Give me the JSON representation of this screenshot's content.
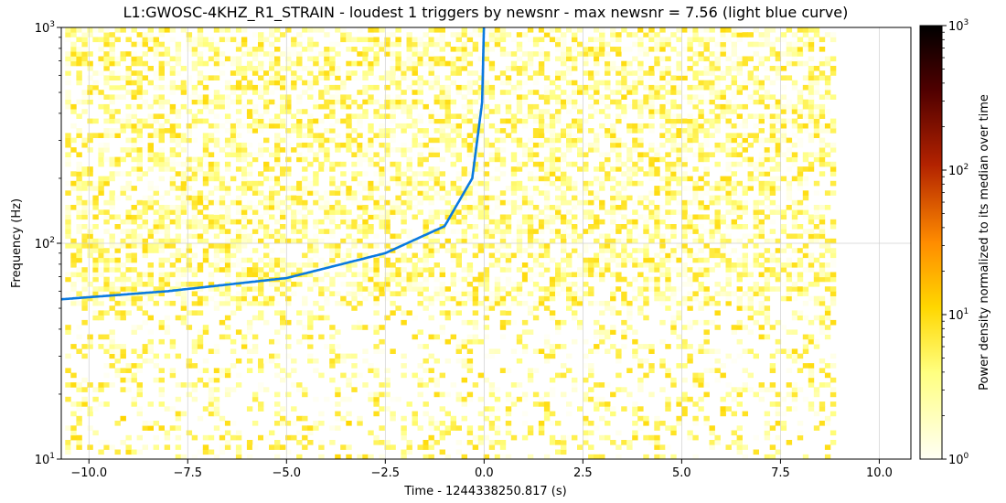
{
  "chart_data": {
    "type": "heatmap",
    "title": "L1:GWOSC-4KHZ_R1_STRAIN - loudest 1 triggers by newsnr - max newsnr = 7.56 (light blue curve)",
    "xlabel": "Time - 1244338250.817 (s)",
    "ylabel": "Frequency (Hz)",
    "xlim": [
      -10.7,
      10.8
    ],
    "ylim": [
      10,
      1000
    ],
    "yscale": "log",
    "grid": true,
    "x_ticks": [
      -10,
      -7.5,
      -5,
      -2.5,
      0,
      2.5,
      5,
      7.5,
      10
    ],
    "x_tick_labels": [
      "−10.0",
      "−7.5",
      "−5.0",
      "−2.5",
      "0.0",
      "2.5",
      "5.0",
      "7.5",
      "10.0"
    ],
    "y_ticks": [
      10,
      100,
      1000
    ],
    "y_tick_labels": [
      "10^1",
      "10^2",
      "10^3"
    ],
    "spectrogram": {
      "time_range": [
        -10.6,
        8.9
      ],
      "freq_range": [
        10,
        1000
      ],
      "typical_value_range": [
        1,
        10
      ]
    },
    "trigger_curve": {
      "color": "#0a7ae0",
      "merger_time": 0.0,
      "points": [
        {
          "t": -10.7,
          "f": 55
        },
        {
          "t": -8.0,
          "f": 60
        },
        {
          "t": -5.0,
          "f": 69
        },
        {
          "t": -2.5,
          "f": 90
        },
        {
          "t": -1.0,
          "f": 120
        },
        {
          "t": -0.3,
          "f": 200
        },
        {
          "t": -0.05,
          "f": 450
        },
        {
          "t": -0.005,
          "f": 1000
        }
      ]
    },
    "colorbar": {
      "label": "Power density normalized to its median over time",
      "scale": "log",
      "range": [
        1,
        1000
      ],
      "ticks": [
        1,
        10,
        100,
        1000
      ],
      "tick_labels": [
        "10^0",
        "10^1",
        "10^2",
        "10^3"
      ],
      "colormap": [
        "#fffff5",
        "#ffff80",
        "#ffd700",
        "#ff8c00",
        "#b22200",
        "#500000",
        "#000000"
      ]
    }
  }
}
